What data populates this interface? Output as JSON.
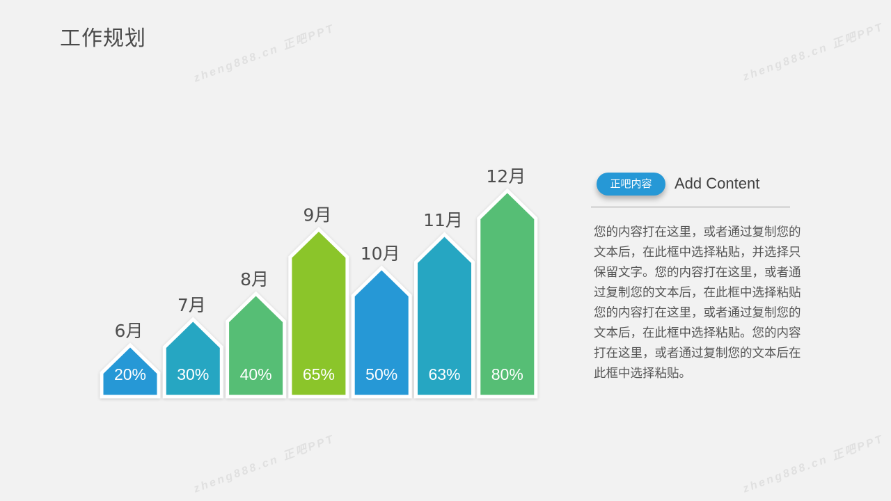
{
  "title": "工作规划",
  "watermark_text": "zheng888.cn 正吧PPT",
  "side_panel": {
    "badge": "正吧内容",
    "heading": "Add Content",
    "body": "您的内容打在这里，或者通过复制您的文本后，在此框中选择粘贴，并选择只保留文字。您的内容打在这里，或者通过复制您的文本后，在此框中选择粘贴您的内容打在这里，或者通过复制您的文本后，在此框中选择粘贴。您的内容打在这里，或者通过复制您的文本后在此框中选择粘贴。"
  },
  "chart_data": {
    "type": "bar",
    "categories": [
      "6月",
      "7月",
      "8月",
      "9月",
      "10月",
      "11月",
      "12月"
    ],
    "values": [
      20,
      30,
      40,
      65,
      50,
      63,
      80
    ],
    "value_labels": [
      "20%",
      "30%",
      "40%",
      "65%",
      "50%",
      "63%",
      "80%"
    ],
    "colors": [
      "#2698d6",
      "#26a6c2",
      "#57be74",
      "#8bc52b",
      "#2698d6",
      "#26a6c2",
      "#57be74"
    ],
    "ylim": [
      0,
      100
    ],
    "grid": false,
    "legend": "none"
  }
}
